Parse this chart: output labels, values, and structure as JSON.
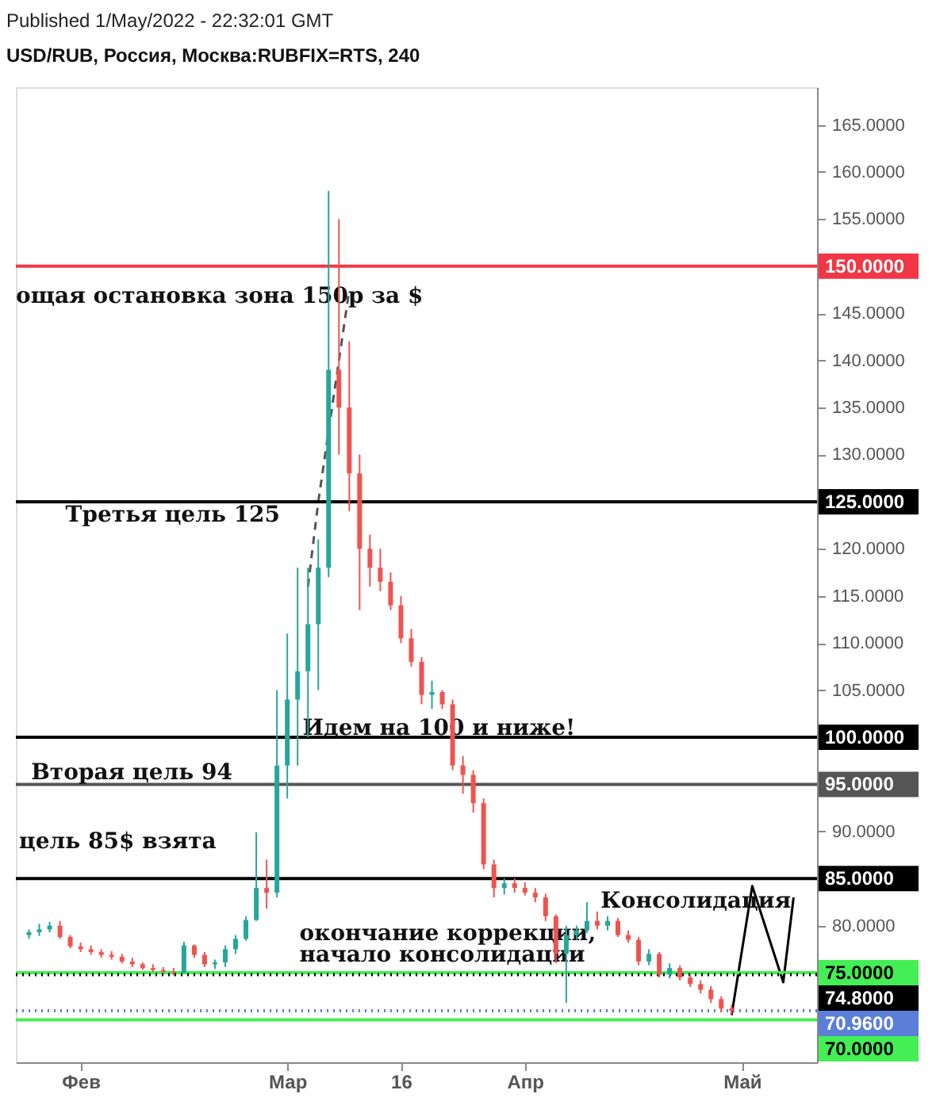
{
  "chart_data": {
    "type": "candlestick",
    "title": "USD/RUB, Россия, Москва:RUBFIX=RTS, 240",
    "annotations": [
      "Published 1/May/2022 - 22:32:01 GMT",
      "ощая остановка зона 150р за $",
      "Третья цель 125",
      "Идем на 100 и ниже!",
      "Вторая цель 94",
      "цель 85$ взята",
      "окончание коррекции,",
      "начало консолидации",
      "Консолидация"
    ],
    "categories": [
      null,
      null,
      null,
      null,
      null,
      "Фев",
      null,
      null,
      null,
      null,
      null,
      null,
      null,
      null,
      null,
      null,
      null,
      null,
      null,
      null,
      null,
      null,
      null,
      null,
      null,
      "Мар",
      null,
      null,
      null,
      null,
      null,
      null,
      null,
      null,
      null,
      null,
      "16",
      null,
      null,
      null,
      null,
      null,
      null,
      null,
      null,
      null,
      null,
      null,
      "Апр",
      null,
      null,
      null,
      null,
      null,
      null,
      null,
      null,
      null,
      null,
      null,
      null,
      null,
      null,
      null,
      null,
      null,
      null,
      null,
      null,
      "Май",
      null,
      null,
      null,
      null,
      null,
      null
    ],
    "ohlc": [
      [
        79.0,
        79.6,
        78.6,
        79.3
      ],
      [
        79.3,
        80.2,
        78.9,
        79.6
      ],
      [
        79.6,
        80.4,
        79.3,
        80.0
      ],
      [
        80.0,
        80.5,
        78.6,
        78.8
      ],
      [
        78.8,
        79.0,
        77.6,
        77.8
      ],
      [
        77.8,
        78.2,
        77.2,
        77.5
      ],
      [
        77.5,
        77.9,
        76.9,
        77.2
      ],
      [
        77.2,
        77.5,
        76.6,
        76.9
      ],
      [
        76.9,
        77.3,
        76.4,
        76.7
      ],
      [
        76.7,
        77.0,
        76.0,
        76.2
      ],
      [
        76.2,
        76.6,
        75.6,
        75.9
      ],
      [
        75.9,
        76.1,
        75.3,
        75.5
      ],
      [
        75.5,
        75.9,
        75.1,
        75.3
      ],
      [
        75.3,
        75.6,
        74.9,
        75.1
      ],
      [
        75.1,
        75.5,
        74.7,
        75.0
      ],
      [
        75.0,
        78.3,
        74.9,
        77.9
      ],
      [
        77.9,
        78.0,
        76.6,
        76.9
      ],
      [
        76.9,
        77.2,
        75.6,
        75.9
      ],
      [
        75.9,
        76.4,
        75.4,
        76.1
      ],
      [
        76.1,
        77.9,
        75.6,
        77.5
      ],
      [
        77.5,
        79.0,
        77.0,
        78.6
      ],
      [
        78.6,
        81.0,
        78.4,
        80.6
      ],
      [
        80.6,
        89.9,
        80.5,
        84.0
      ],
      [
        84.0,
        87.0,
        81.8,
        83.5
      ],
      [
        83.5,
        105.0,
        83.0,
        97.0
      ],
      [
        97.0,
        111.0,
        93.5,
        104.0
      ],
      [
        104.0,
        118.0,
        97.0,
        107.0
      ],
      [
        107.0,
        118.0,
        100.0,
        112.0
      ],
      [
        112.0,
        121.0,
        105.0,
        118.0
      ],
      [
        118.0,
        158.0,
        117.0,
        139.0
      ],
      [
        139.0,
        155.0,
        130.0,
        135.0
      ],
      [
        135.0,
        142.0,
        124.0,
        128.0
      ],
      [
        128.0,
        130.0,
        113.5,
        120.0
      ],
      [
        120.0,
        121.5,
        116.0,
        118.0
      ],
      [
        118.0,
        120.0,
        115.5,
        116.5
      ],
      [
        116.5,
        117.5,
        113.5,
        114.0
      ],
      [
        114.0,
        115.0,
        110.0,
        110.5
      ],
      [
        110.5,
        111.5,
        107.5,
        108.0
      ],
      [
        108.0,
        108.5,
        103.5,
        104.5
      ],
      [
        104.5,
        106.0,
        103.0,
        104.8
      ],
      [
        104.8,
        105.0,
        103.0,
        103.5
      ],
      [
        103.5,
        104.0,
        96.5,
        97.0
      ],
      [
        97.0,
        98.0,
        94.0,
        96.0
      ],
      [
        96.0,
        96.5,
        92.0,
        93.0
      ],
      [
        93.0,
        93.5,
        86.0,
        86.5
      ],
      [
        86.5,
        87.0,
        83.0,
        84.0
      ],
      [
        84.0,
        85.0,
        83.3,
        84.5
      ],
      [
        84.5,
        85.0,
        83.5,
        84.0
      ],
      [
        84.0,
        84.6,
        83.2,
        83.5
      ],
      [
        83.5,
        84.0,
        82.5,
        83.0
      ],
      [
        83.0,
        83.4,
        80.5,
        81.0
      ],
      [
        81.0,
        81.2,
        76.0,
        77.0
      ],
      [
        77.0,
        80.0,
        71.8,
        79.0
      ],
      [
        79.0,
        80.0,
        78.5,
        79.5
      ],
      [
        79.5,
        82.5,
        79.2,
        80.5
      ],
      [
        80.5,
        81.5,
        79.6,
        80.0
      ],
      [
        80.0,
        81.0,
        79.5,
        80.5
      ],
      [
        80.5,
        80.8,
        78.8,
        79.0
      ],
      [
        79.0,
        79.5,
        78.2,
        78.5
      ],
      [
        78.5,
        78.8,
        75.8,
        76.2
      ],
      [
        76.2,
        77.5,
        75.8,
        77.0
      ],
      [
        77.0,
        77.2,
        74.5,
        74.8
      ],
      [
        74.8,
        76.0,
        74.4,
        75.5
      ],
      [
        75.5,
        75.8,
        74.2,
        74.5
      ],
      [
        74.5,
        74.8,
        73.5,
        73.8
      ],
      [
        73.8,
        74.2,
        72.8,
        73.2
      ],
      [
        73.2,
        73.6,
        71.8,
        72.2
      ],
      [
        72.2,
        72.5,
        70.8,
        71.2
      ],
      [
        71.2,
        71.6,
        70.6,
        70.96
      ],
      null,
      null,
      null,
      null,
      null,
      null,
      null
    ],
    "colors": [
      "#26a69a",
      "#26a69a",
      "#26a69a",
      "#ef5350",
      "#ef5350",
      "#ef5350",
      "#ef5350",
      "#ef5350",
      "#ef5350",
      "#ef5350",
      "#ef5350",
      "#ef5350",
      "#ef5350",
      "#ef5350",
      "#ef5350",
      "#26a69a",
      "#ef5350",
      "#ef5350",
      "#26a69a",
      "#26a69a",
      "#26a69a",
      "#26a69a",
      "#26a69a",
      "#ef5350",
      "#26a69a",
      "#26a69a",
      "#26a69a",
      "#26a69a",
      "#26a69a",
      "#26a69a",
      "#ef5350",
      "#ef5350",
      "#ef5350",
      "#ef5350",
      "#ef5350",
      "#ef5350",
      "#ef5350",
      "#ef5350",
      "#ef5350",
      "#26a69a",
      "#ef5350",
      "#ef5350",
      "#ef5350",
      "#ef5350",
      "#ef5350",
      "#ef5350",
      "#26a69a",
      "#ef5350",
      "#ef5350",
      "#ef5350",
      "#ef5350",
      "#ef5350",
      "#26a69a",
      "#26a69a",
      "#26a69a",
      "#ef5350",
      "#26a69a",
      "#ef5350",
      "#ef5350",
      "#ef5350",
      "#26a69a",
      "#ef5350",
      "#26a69a",
      "#ef5350",
      "#ef5350",
      "#ef5350",
      "#ef5350",
      "#ef5350",
      "#ef5350",
      null,
      null,
      null,
      null,
      null,
      null,
      null
    ],
    "series": [
      {
        "type": "line",
        "color": "#555555",
        "line_style": "dashed",
        "values": [
          null,
          null,
          null,
          null,
          null,
          null,
          null,
          null,
          null,
          null,
          null,
          null,
          null,
          null,
          null,
          null,
          null,
          null,
          null,
          null,
          null,
          null,
          null,
          null,
          null,
          null,
          null,
          116,
          125,
          null,
          null,
          147.5,
          null,
          null,
          null,
          null,
          null,
          null,
          null,
          null,
          null,
          null,
          null,
          null,
          null,
          null,
          null,
          null,
          null,
          null,
          null,
          null,
          null,
          null,
          null,
          null,
          null,
          null,
          null,
          null,
          null,
          null,
          null,
          null,
          null,
          null,
          null,
          null,
          null,
          null,
          null,
          null,
          null,
          null,
          null,
          null
        ]
      },
      {
        "type": "line",
        "color": "#000000",
        "line_style": "solid",
        "values": [
          null,
          null,
          null,
          null,
          null,
          null,
          null,
          null,
          null,
          null,
          null,
          null,
          null,
          null,
          null,
          null,
          null,
          null,
          null,
          null,
          null,
          null,
          null,
          null,
          null,
          null,
          null,
          null,
          null,
          null,
          null,
          null,
          null,
          null,
          null,
          null,
          null,
          null,
          null,
          null,
          null,
          null,
          null,
          null,
          null,
          null,
          null,
          null,
          null,
          null,
          null,
          null,
          null,
          null,
          null,
          null,
          null,
          null,
          null,
          null,
          null,
          null,
          null,
          null,
          null,
          null,
          null,
          null,
          70.5,
          null,
          84.2,
          null,
          null,
          74.0,
          83.0,
          null
        ]
      }
    ],
    "ylim": [
      65.5,
      169
    ],
    "yticks": [
      {
        "value": 80,
        "label": "80.0000"
      },
      {
        "value": 90,
        "label": "90.0000"
      },
      {
        "value": 105,
        "label": "105.0000"
      },
      {
        "value": 110,
        "label": "110.0000"
      },
      {
        "value": 115,
        "label": "115.0000"
      },
      {
        "value": 120,
        "label": "120.0000"
      },
      {
        "value": 130,
        "label": "130.0000"
      },
      {
        "value": 135,
        "label": "135.0000"
      },
      {
        "value": 140,
        "label": "140.0000"
      },
      {
        "value": 145,
        "label": "145.0000"
      },
      {
        "value": 155,
        "label": "155.0000"
      },
      {
        "value": 160,
        "label": "160.0000"
      },
      {
        "value": 165,
        "label": "165.0000"
      }
    ],
    "ref_lines": [
      {
        "axis": "y",
        "value": 150,
        "label": "150.0000",
        "color": "#f23645"
      },
      {
        "axis": "y",
        "value": 125,
        "label": "125.0000",
        "color": "#000000"
      },
      {
        "axis": "y",
        "value": 100,
        "label": "100.0000",
        "color": "#000000"
      },
      {
        "axis": "y",
        "value": 95,
        "label": "95.0000",
        "color": "#555555"
      },
      {
        "axis": "y",
        "value": 85,
        "label": "85.0000",
        "color": "#000000"
      },
      {
        "axis": "y",
        "value": 75,
        "label": "75.0000",
        "color": "#44ee55"
      },
      {
        "axis": "y",
        "value": 74.8,
        "label": "74.8000",
        "color": "#000000",
        "line_style": "dotted"
      },
      {
        "axis": "y",
        "value": 70.96,
        "label": "70.9600",
        "color": "#5b7fd8",
        "line_style": "dotted"
      },
      {
        "axis": "y",
        "value": 70,
        "label": "70.0000",
        "color": "#44ee55"
      }
    ]
  }
}
